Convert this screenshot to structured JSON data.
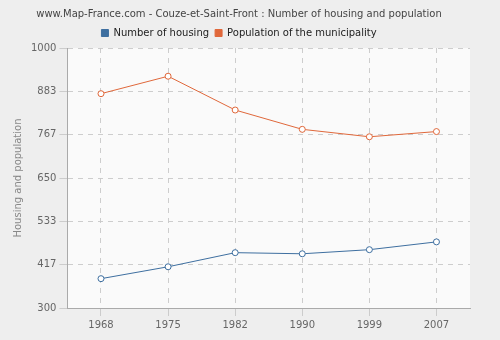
{
  "chart_data": {
    "type": "line",
    "title": "www.Map-France.com - Couze-et-Saint-Front : Number of housing and population",
    "y_label": "Housing and population",
    "categories": [
      "1968",
      "1975",
      "1982",
      "1990",
      "1999",
      "2007"
    ],
    "series": [
      {
        "name": "Number of housing",
        "color": "#3e6fa0",
        "marker": "circle",
        "values": [
          379,
          411,
          449,
          446,
          457,
          478
        ]
      },
      {
        "name": "Population of the municipality",
        "color": "#e0683b",
        "marker": "circle",
        "values": [
          877,
          924,
          833,
          781,
          761,
          775
        ]
      }
    ],
    "ylim": [
      300,
      1000
    ],
    "yticks": [
      300,
      417,
      533,
      650,
      767,
      883,
      1000
    ],
    "grid": true,
    "legend": "top"
  }
}
